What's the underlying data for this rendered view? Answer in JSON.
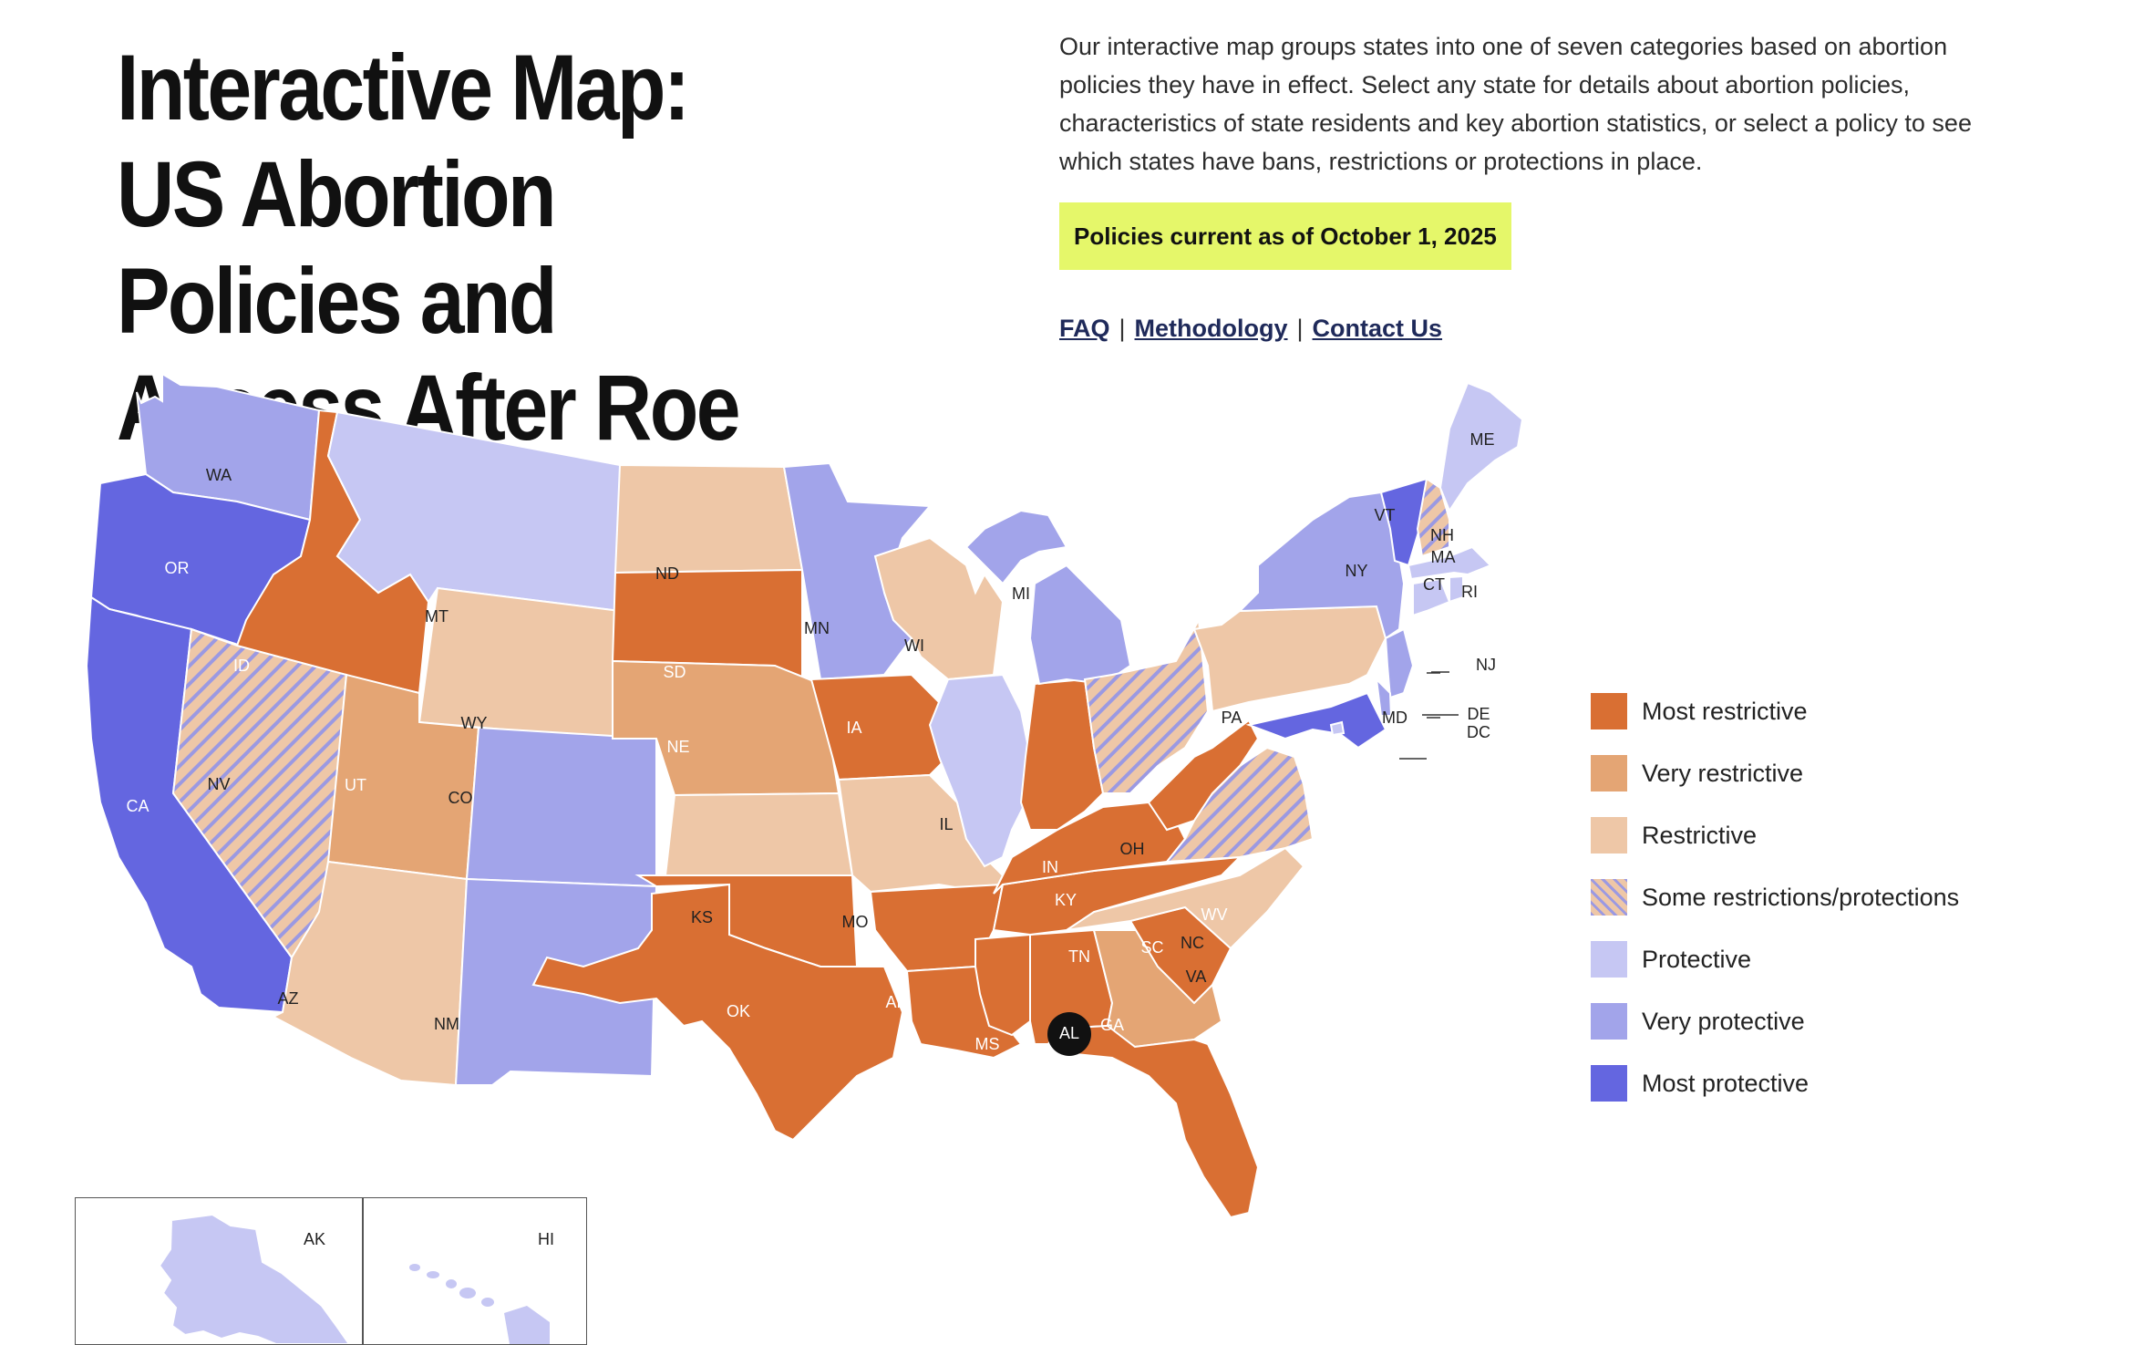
{
  "header": {
    "title": "Interactive Map: US Abortion Policies and Access After Roe",
    "intro": "Our interactive map groups states into one of seven categories based on abortion policies they have in effect. Select any state for details about abortion policies, characteristics of state residents and key abortion statistics, or select a policy to see which states have bans, restrictions or protections in place.",
    "badge": "Policies current as of October 1, 2025"
  },
  "links": {
    "faq": "FAQ",
    "methodology": "Methodology",
    "contact": "Contact Us",
    "separator": "|"
  },
  "colors": {
    "most_restrictive": "#d96f33",
    "very_restrictive": "#e4a574",
    "restrictive": "#eec7a7",
    "some_restrictions_protections_hatch": "#9b99e2",
    "some_restrictions_protections_base": "#eec7a7",
    "protective": "#c6c7f3",
    "very_protective": "#a2a4ea",
    "most_protective": "#6466e0",
    "badge_background": "#e5f76a"
  },
  "legend": [
    {
      "key": "most_restrictive",
      "label": "Most restrictive"
    },
    {
      "key": "very_restrictive",
      "label": "Very restrictive"
    },
    {
      "key": "restrictive",
      "label": "Restrictive"
    },
    {
      "key": "some_restrictions_protections",
      "label": "Some restrictions/protections"
    },
    {
      "key": "protective",
      "label": "Protective"
    },
    {
      "key": "very_protective",
      "label": "Very protective"
    },
    {
      "key": "most_protective",
      "label": "Most protective"
    }
  ],
  "selected_state": "AL",
  "states": {
    "WA": "very_protective",
    "OR": "most_protective",
    "CA": "most_protective",
    "ID": "most_restrictive",
    "NV": "some_restrictions_protections",
    "MT": "protective",
    "WY": "restrictive",
    "UT": "very_restrictive",
    "AZ": "restrictive",
    "CO": "very_protective",
    "NM": "very_protective",
    "ND": "restrictive",
    "SD": "most_restrictive",
    "NE": "very_restrictive",
    "KS": "restrictive",
    "OK": "most_restrictive",
    "TX": "most_restrictive",
    "MN": "very_protective",
    "IA": "most_restrictive",
    "MO": "restrictive",
    "AR": "most_restrictive",
    "LA": "most_restrictive",
    "WI": "restrictive",
    "IL": "protective",
    "MI": "very_protective",
    "IN": "most_restrictive",
    "OH": "some_restrictions_protections",
    "KY": "most_restrictive",
    "TN": "most_restrictive",
    "MS": "most_restrictive",
    "AL": "most_restrictive",
    "GA": "very_restrictive",
    "FL": "most_restrictive",
    "SC": "most_restrictive",
    "NC": "restrictive",
    "VA": "some_restrictions_protections",
    "WV": "most_restrictive",
    "PA": "restrictive",
    "NY": "very_protective",
    "VT": "most_protective",
    "NH": "some_restrictions_protections",
    "ME": "protective",
    "MA": "protective",
    "CT": "protective",
    "RI": "protective",
    "NJ": "very_protective",
    "DE": "very_protective",
    "MD": "most_protective",
    "DC": "protective",
    "AK": "protective",
    "HI": "protective"
  }
}
